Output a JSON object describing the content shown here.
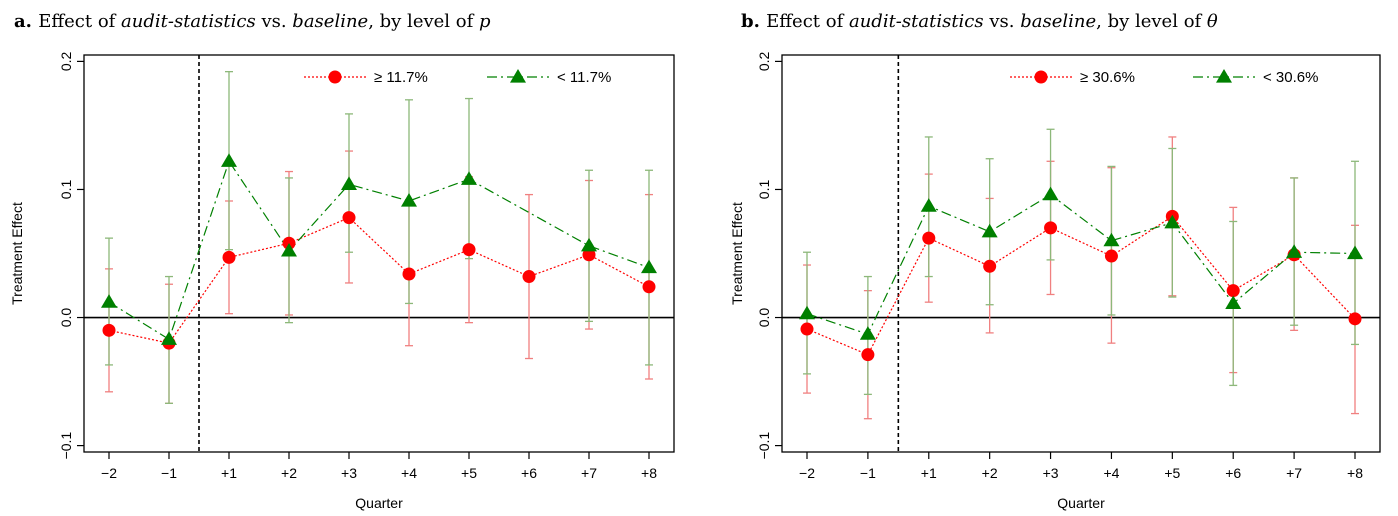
{
  "chart_data": [
    {
      "type": "line",
      "panel_label": "a.",
      "title_parts": [
        {
          "text": "Effect of ",
          "style": "normal"
        },
        {
          "text": "audit-statistics",
          "style": "italic"
        },
        {
          "text": " vs. ",
          "style": "normal"
        },
        {
          "text": "baseline",
          "style": "italic"
        },
        {
          "text": ", by level of ",
          "style": "normal"
        },
        {
          "text": "p",
          "style": "italic"
        }
      ],
      "xlabel": "Quarter",
      "ylabel": "Treatment Effect",
      "categories": [
        "−2",
        "−1",
        "+1",
        "+2",
        "+3",
        "+4",
        "+5",
        "+6",
        "+7",
        "+8"
      ],
      "ylim": [
        -0.105,
        0.205
      ],
      "yticks": [
        -0.1,
        0.0,
        0.1,
        0.2
      ],
      "ytick_labels": [
        "−0.1",
        "0.0",
        "0.1",
        "0.2"
      ],
      "vline_after_index": 1,
      "legend_position": "top-right",
      "series": [
        {
          "name": "≥ 11.7%",
          "color": "#ff0000",
          "errcolor": "#f08080",
          "marker": "circle",
          "line": "dotted",
          "values": [
            -0.01,
            -0.02,
            0.047,
            0.058,
            0.078,
            0.034,
            0.053,
            0.032,
            0.049,
            0.024
          ],
          "lower": [
            -0.058,
            -0.067,
            0.003,
            0.002,
            0.027,
            -0.022,
            -0.004,
            -0.032,
            -0.009,
            -0.048
          ],
          "upper": [
            0.038,
            0.026,
            0.091,
            0.114,
            0.13,
            0.09,
            0.11,
            0.096,
            0.107,
            0.096
          ]
        },
        {
          "name": "< 11.7%",
          "color": "#008000",
          "errcolor": "#8db87a",
          "marker": "triangle",
          "line": "dashdot",
          "values": [
            0.012,
            -0.017,
            0.122,
            0.052,
            0.104,
            0.091,
            0.108,
            null,
            0.056,
            0.039
          ],
          "lower": [
            -0.037,
            -0.067,
            0.053,
            -0.004,
            0.051,
            0.011,
            0.046,
            null,
            -0.003,
            -0.037
          ],
          "upper": [
            0.062,
            0.032,
            0.192,
            0.109,
            0.159,
            0.17,
            0.171,
            null,
            0.115,
            0.115
          ]
        }
      ]
    },
    {
      "type": "line",
      "panel_label": "b.",
      "title_parts": [
        {
          "text": "Effect of ",
          "style": "normal"
        },
        {
          "text": "audit-statistics",
          "style": "italic"
        },
        {
          "text": " vs. ",
          "style": "normal"
        },
        {
          "text": "baseline",
          "style": "italic"
        },
        {
          "text": ", by level of ",
          "style": "normal"
        },
        {
          "text": "θ",
          "style": "italic"
        }
      ],
      "xlabel": "Quarter",
      "ylabel": "Treatment Effect",
      "categories": [
        "−2",
        "−1",
        "+1",
        "+2",
        "+3",
        "+4",
        "+5",
        "+6",
        "+7",
        "+8"
      ],
      "ylim": [
        -0.105,
        0.205
      ],
      "yticks": [
        -0.1,
        0.0,
        0.1,
        0.2
      ],
      "ytick_labels": [
        "−0.1",
        "0.0",
        "0.1",
        "0.2"
      ],
      "vline_after_index": 1,
      "legend_position": "top-right",
      "series": [
        {
          "name": "≥ 30.6%",
          "color": "#ff0000",
          "errcolor": "#f08080",
          "marker": "circle",
          "line": "dotted",
          "values": [
            -0.009,
            -0.029,
            0.062,
            0.04,
            0.07,
            0.048,
            0.079,
            0.021,
            0.049,
            -0.001
          ],
          "lower": [
            -0.059,
            -0.079,
            0.012,
            -0.012,
            0.018,
            -0.02,
            0.017,
            -0.043,
            -0.01,
            -0.075
          ],
          "upper": [
            0.041,
            0.021,
            0.112,
            0.093,
            0.122,
            0.117,
            0.141,
            0.086,
            0.109,
            0.072
          ]
        },
        {
          "name": "< 30.6%",
          "color": "#008000",
          "errcolor": "#8db87a",
          "marker": "triangle",
          "line": "dashdot",
          "values": [
            0.003,
            -0.013,
            0.087,
            0.067,
            0.096,
            0.06,
            0.074,
            0.011,
            0.051,
            0.05
          ],
          "lower": [
            -0.044,
            -0.06,
            0.032,
            0.01,
            0.045,
            0.002,
            0.016,
            -0.053,
            -0.006,
            -0.021
          ],
          "upper": [
            0.051,
            0.032,
            0.141,
            0.124,
            0.147,
            0.118,
            0.132,
            0.075,
            0.109,
            0.122
          ]
        }
      ]
    }
  ]
}
